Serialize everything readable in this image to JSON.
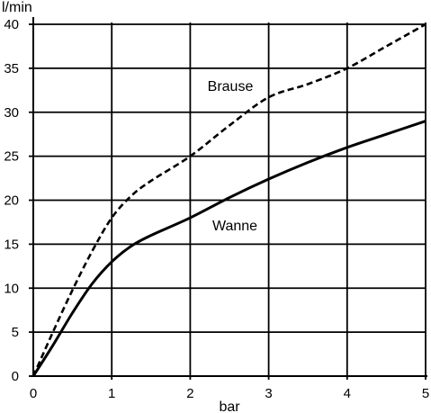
{
  "chart_data": {
    "type": "line",
    "title": "",
    "xlabel": "bar",
    "ylabel": "l/min",
    "xlim": [
      0,
      5
    ],
    "ylim": [
      0,
      40
    ],
    "xticks": [
      0,
      1,
      2,
      3,
      4,
      5
    ],
    "yticks": [
      0,
      5,
      10,
      15,
      20,
      25,
      30,
      35,
      40
    ],
    "xtick_labels": [
      "0",
      "1",
      "2",
      "3",
      "4",
      "5"
    ],
    "ytick_labels": [
      "0",
      "5",
      "10",
      "15",
      "20",
      "25",
      "30",
      "35",
      "40"
    ],
    "grid": true,
    "legend": "none",
    "series": [
      {
        "name": "Wanne",
        "line_style": "solid",
        "color": "#000000",
        "x": [
          0,
          0.25,
          0.5,
          0.75,
          1.0,
          1.25,
          1.5,
          2.0,
          2.5,
          3.0,
          3.5,
          4.0,
          4.5,
          5.0
        ],
        "y": [
          0,
          3.5,
          7.2,
          10.5,
          13.0,
          14.8,
          16.0,
          18.0,
          20.3,
          22.4,
          24.3,
          26.0,
          27.5,
          29.0
        ]
      },
      {
        "name": "Brause",
        "line_style": "dashed",
        "color": "#000000",
        "x": [
          0,
          0.25,
          0.5,
          0.75,
          1.0,
          1.25,
          1.5,
          2.0,
          2.5,
          3.0,
          3.5,
          4.0,
          4.5,
          5.0
        ],
        "y": [
          0,
          5.0,
          9.8,
          14.2,
          18.0,
          20.5,
          22.2,
          25.0,
          28.5,
          31.7,
          33.2,
          35.0,
          37.5,
          40.0
        ]
      }
    ],
    "annotations": [
      {
        "text": "Brause",
        "series": "Brause"
      },
      {
        "text": "Wanne",
        "series": "Wanne"
      }
    ]
  }
}
